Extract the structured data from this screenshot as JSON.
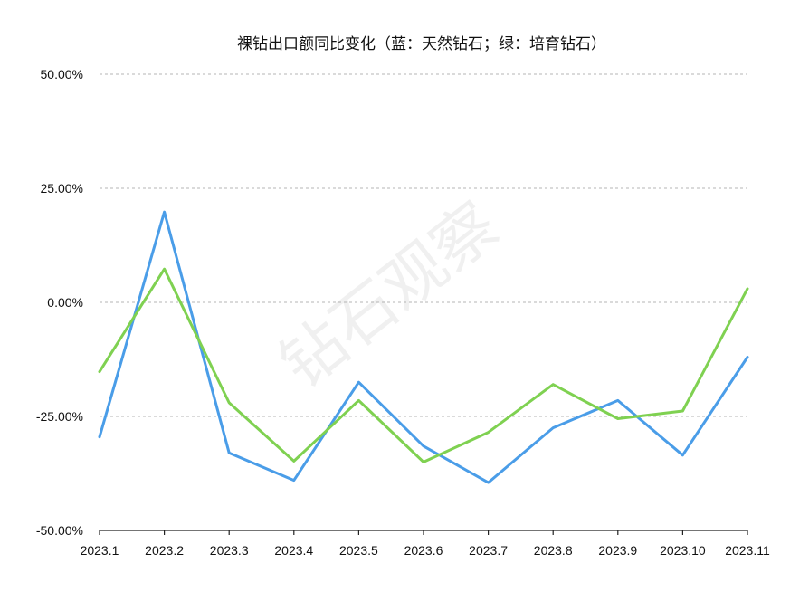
{
  "chart_data": {
    "type": "line",
    "title": "裸钻出口额同比变化（蓝：天然钻石；绿：培育钻石）",
    "watermark": "钻石观察",
    "xlabel": "",
    "ylabel": "",
    "categories": [
      "2023.1",
      "2023.2",
      "2023.3",
      "2023.4",
      "2023.5",
      "2023.6",
      "2023.7",
      "2023.8",
      "2023.9",
      "2023.10",
      "2023.11"
    ],
    "ylim": [
      -50,
      50
    ],
    "yticks": [
      -50,
      -25,
      0,
      25,
      50
    ],
    "ytick_labels": [
      "-50.00%",
      "-25.00%",
      "0.00%",
      "25.00%",
      "50.00%"
    ],
    "grid": true,
    "series": [
      {
        "color": "#4a9de8",
        "values": [
          -29.5,
          19.8,
          -33.0,
          -39.0,
          -17.5,
          -31.5,
          -39.5,
          -27.5,
          -21.5,
          -33.5,
          -12.0
        ]
      },
      {
        "color": "#7fd151",
        "values": [
          -15.2,
          7.3,
          -22.0,
          -34.8,
          -21.5,
          -35.0,
          -28.5,
          -18.0,
          -25.5,
          -23.8,
          3.0
        ]
      }
    ]
  }
}
